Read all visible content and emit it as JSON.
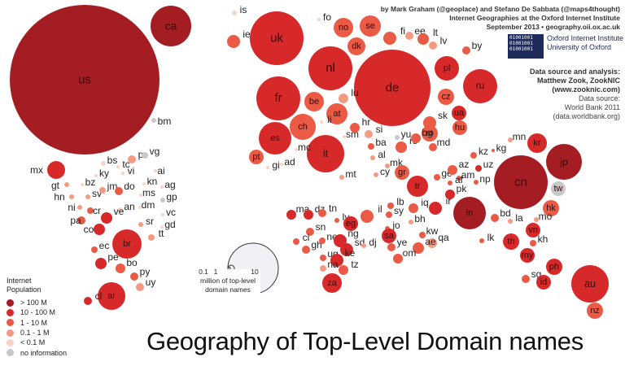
{
  "title": "Geography of Top-Level Domain names",
  "credits": {
    "authors": "by Mark Graham (@geoplace) and Stefano De Sabbata (@maps4thought)",
    "institute": "Internet Geographies at the Oxford Internet Institute",
    "date_url": "September 2013 • geography.oii.ox.ac.uk"
  },
  "oii": {
    "line1": "Oxford Internet Institute",
    "line2": "University of Oxford",
    "logo_text": "01001001 01001001 01001001"
  },
  "source": {
    "heading": "Data source and analysis:",
    "analyst": "Matthew Zook, ZookNIC",
    "analyst_url": "(www.zooknic.com)",
    "data_heading": "Data source:",
    "data_source": "World Bank 2011",
    "data_url": "(data.worldbank.org)"
  },
  "legend": {
    "title_line1": "Internet",
    "title_line2": "Population",
    "items": [
      {
        "label": "> 100 M",
        "color": "#a31d22"
      },
      {
        "label": "10 - 100 M",
        "color": "#d7282a"
      },
      {
        "label": "1 - 10 M",
        "color": "#ea5a45"
      },
      {
        "label": "0.1 - 1 M",
        "color": "#f39b82"
      },
      {
        "label": "< 0.1 M",
        "color": "#fbd3c3"
      },
      {
        "label": "no information",
        "color": "#c8c8c8"
      }
    ]
  },
  "scale": {
    "ticks": [
      "0.1",
      "1",
      "10"
    ],
    "label_line1": "million of top-level",
    "label_line2": "domain names"
  },
  "countries": [
    {
      "code": "us",
      "cls": 0
    },
    {
      "code": "ca",
      "cls": 0
    },
    {
      "code": "bm",
      "cls": 5
    },
    {
      "code": "mx",
      "cls": 1
    },
    {
      "code": "gt",
      "cls": 3
    },
    {
      "code": "bz",
      "cls": 4
    },
    {
      "code": "hn",
      "cls": 3
    },
    {
      "code": "sv",
      "cls": 3
    },
    {
      "code": "ni",
      "cls": 3
    },
    {
      "code": "cr",
      "cls": 2
    },
    {
      "code": "pa",
      "cls": 2
    },
    {
      "code": "bs",
      "cls": 4
    },
    {
      "code": "ky",
      "cls": 4
    },
    {
      "code": "jm",
      "cls": 3
    },
    {
      "code": "tc",
      "cls": 4
    },
    {
      "code": "vi",
      "cls": 4
    },
    {
      "code": "pr",
      "cls": 3
    },
    {
      "code": "vg",
      "cls": 5
    },
    {
      "code": "ai",
      "cls": 4
    },
    {
      "code": "ag",
      "cls": 4
    },
    {
      "code": "kn",
      "cls": 4
    },
    {
      "code": "ms",
      "cls": 4
    },
    {
      "code": "do",
      "cls": 2
    },
    {
      "code": "gp",
      "cls": 5
    },
    {
      "code": "dm",
      "cls": 4
    },
    {
      "code": "vc",
      "cls": 4
    },
    {
      "code": "gd",
      "cls": 4
    },
    {
      "code": "tt",
      "cls": 3
    },
    {
      "code": "an",
      "cls": 4
    },
    {
      "code": "sr",
      "cls": 3
    },
    {
      "code": "co",
      "cls": 1
    },
    {
      "code": "ve",
      "cls": 1
    },
    {
      "code": "br",
      "cls": 1
    },
    {
      "code": "ec",
      "cls": 2
    },
    {
      "code": "pe",
      "cls": 1
    },
    {
      "code": "bo",
      "cls": 2
    },
    {
      "code": "py",
      "cls": 2
    },
    {
      "code": "uy",
      "cls": 3
    },
    {
      "code": "ar",
      "cls": 1
    },
    {
      "code": "cl",
      "cls": 1
    },
    {
      "code": "is",
      "cls": 4
    },
    {
      "code": "ie",
      "cls": 2
    },
    {
      "code": "uk",
      "cls": 1
    },
    {
      "code": "fo",
      "cls": 4
    },
    {
      "code": "no",
      "cls": 2
    },
    {
      "code": "se",
      "cls": 2
    },
    {
      "code": "dk",
      "cls": 2
    },
    {
      "code": "fi",
      "cls": 2
    },
    {
      "code": "ee",
      "cls": 3
    },
    {
      "code": "lt",
      "cls": 2
    },
    {
      "code": "lv",
      "cls": 3
    },
    {
      "code": "nl",
      "cls": 1
    },
    {
      "code": "de",
      "cls": 1
    },
    {
      "code": "pl",
      "cls": 1
    },
    {
      "code": "by",
      "cls": 2
    },
    {
      "code": "ru",
      "cls": 1
    },
    {
      "code": "fr",
      "cls": 1
    },
    {
      "code": "be",
      "cls": 2
    },
    {
      "code": "lu",
      "cls": 3
    },
    {
      "code": "at",
      "cls": 2
    },
    {
      "code": "cz",
      "cls": 2
    },
    {
      "code": "ua",
      "cls": 1
    },
    {
      "code": "ch",
      "cls": 2
    },
    {
      "code": "li",
      "cls": 4
    },
    {
      "code": "sk",
      "cls": 2
    },
    {
      "code": "hu",
      "cls": 2
    },
    {
      "code": "ro",
      "cls": 2
    },
    {
      "code": "md",
      "cls": 2
    },
    {
      "code": "es",
      "cls": 1
    },
    {
      "code": "pt",
      "cls": 2
    },
    {
      "code": "it",
      "cls": 1
    },
    {
      "code": "mc",
      "cls": 4
    },
    {
      "code": "ad",
      "cls": 4
    },
    {
      "code": "gi",
      "cls": 4
    },
    {
      "code": "sm",
      "cls": 4
    },
    {
      "code": "hr",
      "cls": 2
    },
    {
      "code": "si",
      "cls": 3
    },
    {
      "code": "ba",
      "cls": 2
    },
    {
      "code": "rs",
      "cls": 2
    },
    {
      "code": "bg",
      "cls": 2
    },
    {
      "code": "yu",
      "cls": 5
    },
    {
      "code": "al",
      "cls": 3
    },
    {
      "code": "mk",
      "cls": 3
    },
    {
      "code": "gr",
      "cls": 2
    },
    {
      "code": "mt",
      "cls": 3
    },
    {
      "code": "cy",
      "cls": 3
    },
    {
      "code": "tr",
      "cls": 1
    },
    {
      "code": "ge",
      "cls": 2
    },
    {
      "code": "az",
      "cls": 2
    },
    {
      "code": "am",
      "cls": 2
    },
    {
      "code": "kz",
      "cls": 2
    },
    {
      "code": "uz",
      "cls": 1
    },
    {
      "code": "af",
      "cls": 2
    },
    {
      "code": "pk",
      "cls": 1
    },
    {
      "code": "np",
      "cls": 2
    },
    {
      "code": "kg",
      "cls": 2
    },
    {
      "code": "mn",
      "cls": 3
    },
    {
      "code": "kr",
      "cls": 1
    },
    {
      "code": "jp",
      "cls": 0
    },
    {
      "code": "cn",
      "cls": 0
    },
    {
      "code": "tw",
      "cls": 5
    },
    {
      "code": "hk",
      "cls": 2
    },
    {
      "code": "in",
      "cls": 0
    },
    {
      "code": "bd",
      "cls": 2
    },
    {
      "code": "lk",
      "cls": 2
    },
    {
      "code": "la",
      "cls": 3
    },
    {
      "code": "mo",
      "cls": 3
    },
    {
      "code": "vn",
      "cls": 1
    },
    {
      "code": "th",
      "cls": 1
    },
    {
      "code": "kh",
      "cls": 2
    },
    {
      "code": "my",
      "cls": 1
    },
    {
      "code": "sg",
      "cls": 2
    },
    {
      "code": "ph",
      "cls": 1
    },
    {
      "code": "id",
      "cls": 1
    },
    {
      "code": "au",
      "cls": 1
    },
    {
      "code": "nz",
      "cls": 2
    },
    {
      "code": "ma",
      "cls": 1
    },
    {
      "code": "dz",
      "cls": 1
    },
    {
      "code": "tn",
      "cls": 2
    },
    {
      "code": "ly",
      "cls": 2
    },
    {
      "code": "eg",
      "cls": 1
    },
    {
      "code": "il",
      "cls": 2
    },
    {
      "code": "lb",
      "cls": 2
    },
    {
      "code": "sy",
      "cls": 2
    },
    {
      "code": "iq",
      "cls": 2
    },
    {
      "code": "ir",
      "cls": 1
    },
    {
      "code": "jo",
      "cls": 2
    },
    {
      "code": "sa",
      "cls": 1
    },
    {
      "code": "kw",
      "cls": 2
    },
    {
      "code": "bh",
      "cls": 3
    },
    {
      "code": "qa",
      "cls": 3
    },
    {
      "code": "ae",
      "cls": 2
    },
    {
      "code": "om",
      "cls": 2
    },
    {
      "code": "ye",
      "cls": 2
    },
    {
      "code": "sn",
      "cls": 2
    },
    {
      "code": "ci",
      "cls": 2
    },
    {
      "code": "gh",
      "cls": 2
    },
    {
      "code": "ne",
      "cls": 2
    },
    {
      "code": "ng",
      "cls": 1
    },
    {
      "code": "sd",
      "cls": 1
    },
    {
      "code": "dj",
      "cls": 3
    },
    {
      "code": "ug",
      "cls": 2
    },
    {
      "code": "ke",
      "cls": 1
    },
    {
      "code": "tz",
      "cls": 2
    },
    {
      "code": "na",
      "cls": 3
    },
    {
      "code": "za",
      "cls": 1
    }
  ]
}
